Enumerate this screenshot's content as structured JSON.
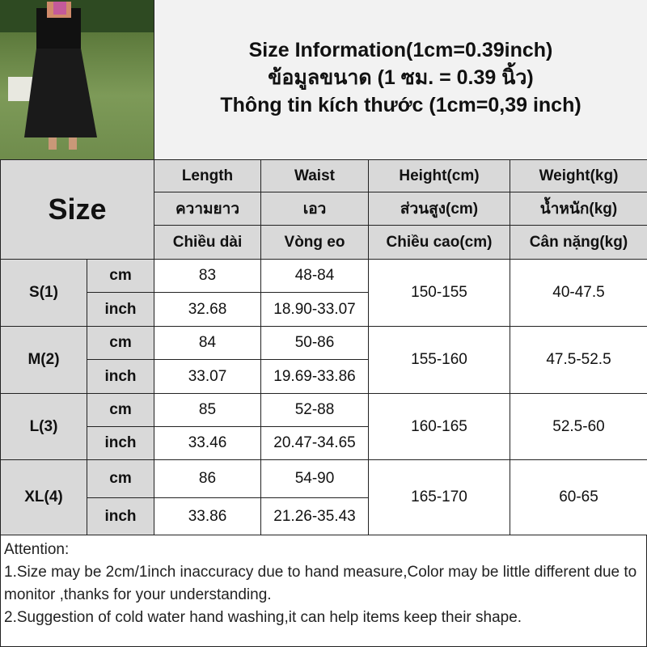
{
  "title": {
    "line1": "Size Information(1cm=0.39inch)",
    "line2": "ข้อมูลขนาด (1 ซม. = 0.39 นิ้ว)",
    "line3": "Thông tin kích thước (1cm=0,39 inch)"
  },
  "header": {
    "size_label": "Size",
    "columns": [
      {
        "en": "Length",
        "th": "ความยาว",
        "vi": "Chiều dài"
      },
      {
        "en": "Waist",
        "th": "เอว",
        "vi": "Vòng eo"
      },
      {
        "en": "Height(cm)",
        "th": "ส่วนสูง(cm)",
        "vi": "Chiều cao(cm)"
      },
      {
        "en": "Weight(kg)",
        "th": "น้ำหนัก(kg)",
        "vi": "Cân nặng(kg)"
      }
    ]
  },
  "rows": [
    {
      "size": "S(1)",
      "cm_label": "cm",
      "inch_label": "inch",
      "length_cm": "83",
      "waist_cm": "48-84",
      "length_inch": "32.68",
      "waist_inch": "18.90-33.07",
      "height": "150-155",
      "weight": "40-47.5"
    },
    {
      "size": "M(2)",
      "cm_label": "cm",
      "inch_label": "inch",
      "length_cm": "84",
      "waist_cm": "50-86",
      "length_inch": "33.07",
      "waist_inch": "19.69-33.86",
      "height": "155-160",
      "weight": "47.5-52.5"
    },
    {
      "size": "L(3)",
      "cm_label": "cm",
      "inch_label": "inch",
      "length_cm": "85",
      "waist_cm": "52-88",
      "length_inch": "33.46",
      "waist_inch": "20.47-34.65",
      "height": "160-165",
      "weight": "52.5-60"
    },
    {
      "size": "XL(4)",
      "cm_label": "cm",
      "inch_label": "inch",
      "length_cm": "86",
      "waist_cm": "54-90",
      "length_inch": "33.86",
      "waist_inch": "21.26-35.43",
      "height": "165-170",
      "weight": "60-65"
    }
  ],
  "attention": {
    "heading": "Attention:",
    "note1": "1.Size may be 2cm/1inch inaccuracy due to hand measure,Color may be little different due to monitor ,thanks for your understanding.",
    "note2": "2.Suggestion of cold water hand washing,it can help items keep their shape."
  }
}
